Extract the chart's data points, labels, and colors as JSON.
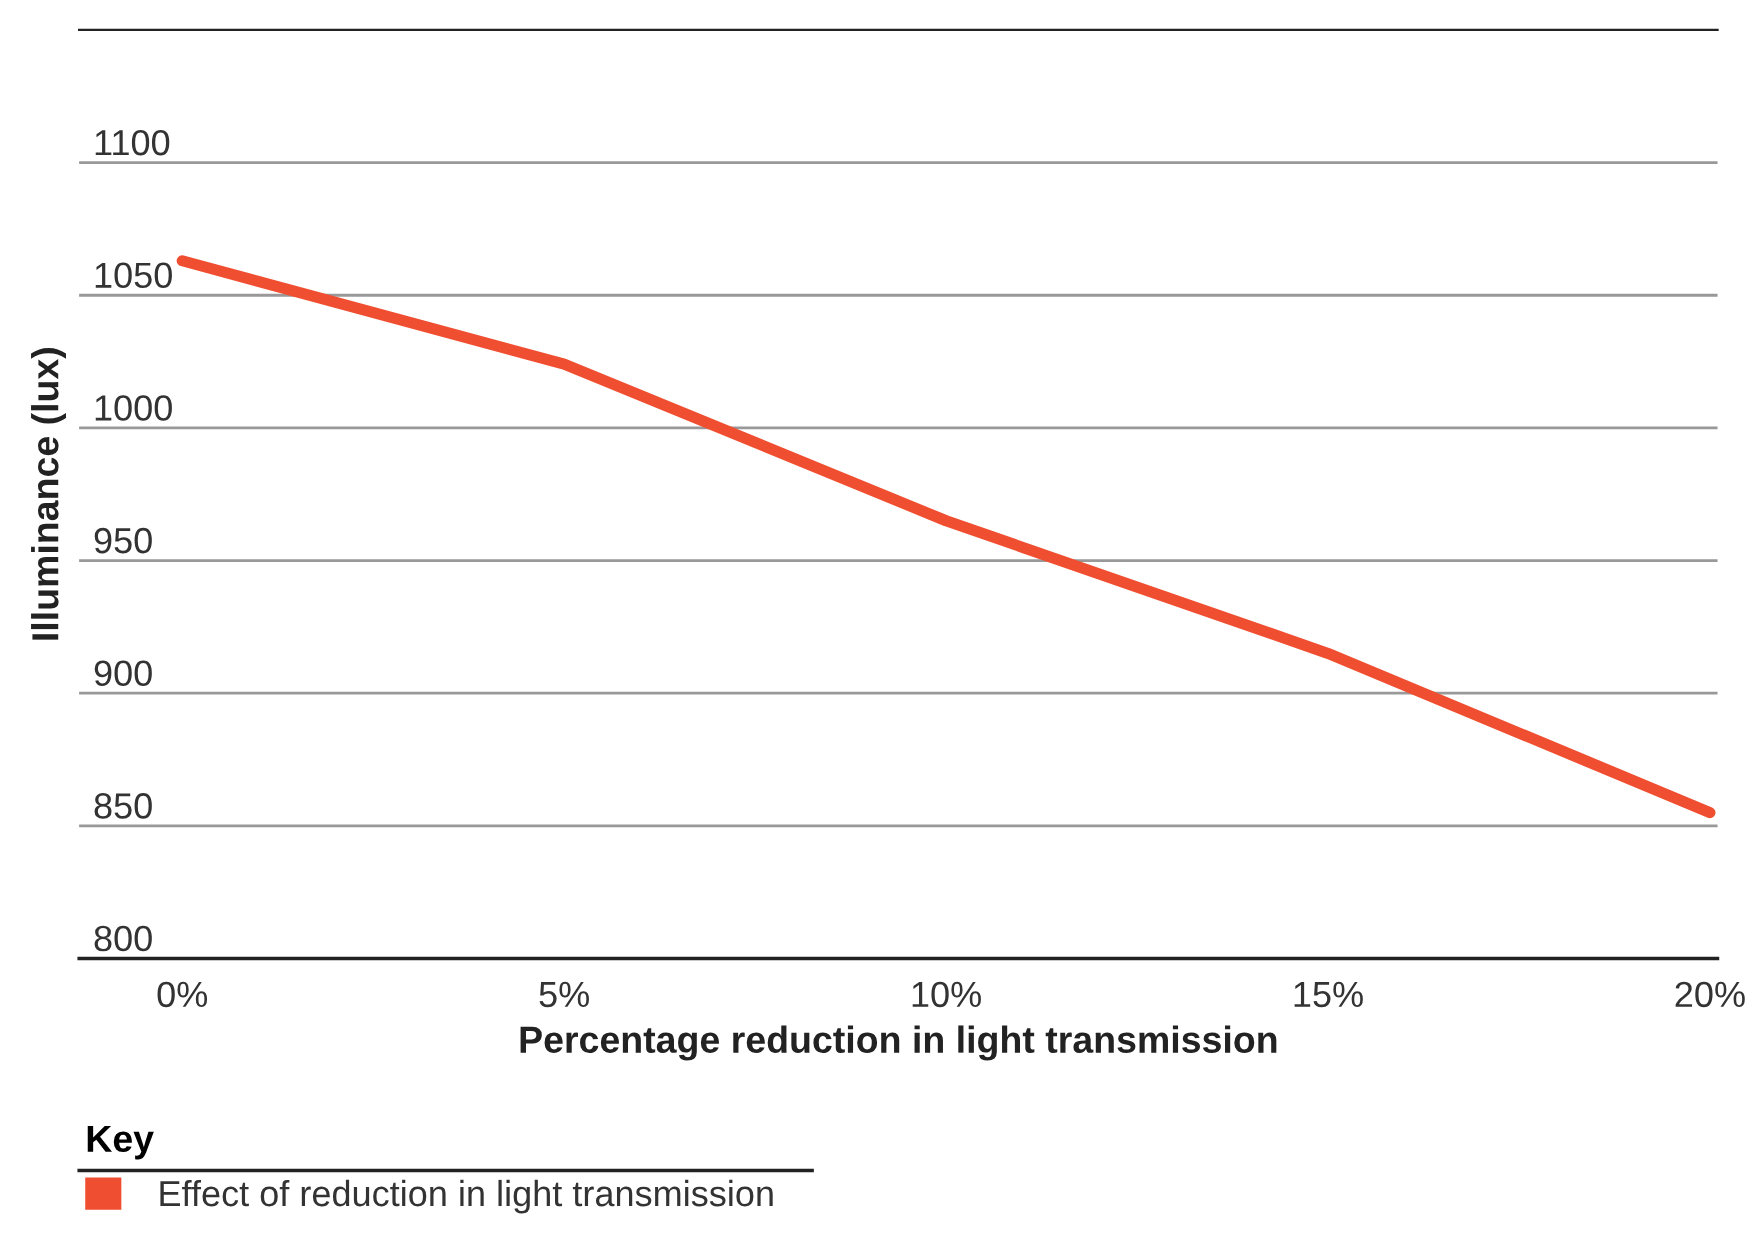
{
  "chart_data": {
    "type": "line",
    "xlabel": "Percentage reduction in light transmission",
    "ylabel": "Illuminance (lux)",
    "legend_title": "Key",
    "categories": [
      "0%",
      "5%",
      "10%",
      "15%",
      "20%"
    ],
    "series": [
      {
        "name": "Effect of reduction in light transmission",
        "color": "#f04e30",
        "values": [
          1063,
          1024,
          965,
          915,
          855
        ]
      }
    ],
    "ylim": [
      800,
      1150
    ],
    "yticks": [
      800,
      850,
      900,
      950,
      1000,
      1050,
      1100
    ],
    "grid": "y",
    "legend": "bottom",
    "marker": "none",
    "line_style": "solid"
  }
}
